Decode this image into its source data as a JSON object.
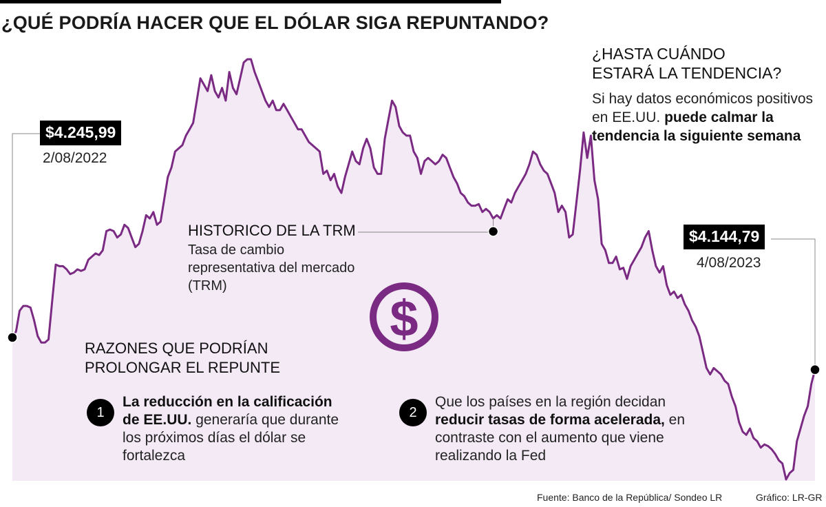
{
  "headline": "¿QUÉ PODRÍA HACER QUE EL DÓLAR SIGA REPUNTANDO?",
  "chart_data": {
    "type": "area",
    "title": "HISTORICO DE LA TRM",
    "subtitle": "Tasa de cambio representativa del mercado (TRM)",
    "x_start": "2/08/2022",
    "x_end": "4/08/2023",
    "values": [
      4245.99,
      4265,
      4330,
      4345,
      4345,
      4340,
      4300,
      4250,
      4230,
      4230,
      4240,
      4360,
      4475,
      4470,
      4470,
      4460,
      4445,
      4450,
      4460,
      4455,
      4460,
      4490,
      4500,
      4510,
      4505,
      4520,
      4580,
      4585,
      4580,
      4560,
      4570,
      4600,
      4590,
      4560,
      4530,
      4540,
      4580,
      4630,
      4620,
      4640,
      4600,
      4610,
      4680,
      4750,
      4780,
      4830,
      4840,
      4850,
      4880,
      4900,
      4920,
      4990,
      5060,
      5040,
      5020,
      5070,
      5020,
      5000,
      5030,
      4990,
      5080,
      5030,
      5010,
      5060,
      5110,
      5120,
      5120,
      5080,
      5050,
      5020,
      4990,
      4970,
      4990,
      4960,
      4960,
      4980,
      4960,
      4940,
      4920,
      4900,
      4900,
      4880,
      4860,
      4850,
      4840,
      4830,
      4760,
      4770,
      4740,
      4760,
      4720,
      4700,
      4750,
      4790,
      4830,
      4800,
      4790,
      4840,
      4870,
      4840,
      4780,
      4760,
      4760,
      4870,
      4930,
      4990,
      4970,
      4910,
      4890,
      4880,
      4880,
      4830,
      4810,
      4760,
      4800,
      4810,
      4800,
      4790,
      4800,
      4820,
      4810,
      4780,
      4750,
      4730,
      4700,
      4690,
      4670,
      4660,
      4660,
      4665,
      4640,
      4650,
      4640,
      4620,
      4630,
      4620,
      4650,
      4680,
      4670,
      4700,
      4720,
      4740,
      4760,
      4790,
      4830,
      4820,
      4790,
      4770,
      4760,
      4730,
      4700,
      4640,
      4660,
      4640,
      4560,
      4570,
      4670,
      4770,
      4890,
      4810,
      4880,
      4740,
      4680,
      4540,
      4520,
      4480,
      4480,
      4500,
      4460,
      4465,
      4430,
      4470,
      4490,
      4510,
      4530,
      4560,
      4580,
      4520,
      4470,
      4450,
      4470,
      4410,
      4380,
      4390,
      4370,
      4380,
      4350,
      4330,
      4300,
      4280,
      4250,
      4200,
      4150,
      4130,
      4150,
      4140,
      4130,
      4110,
      4100,
      4060,
      4030,
      3980,
      3950,
      3940,
      3960,
      3930,
      3920,
      3900,
      3910,
      3905,
      3895,
      3880,
      3860,
      3850,
      3800,
      3820,
      3830,
      3920,
      3960,
      4000,
      4030,
      4100,
      4144.79
    ],
    "annotations": [
      {
        "value": "$4.245,99",
        "date": "2/08/2022"
      },
      {
        "value": "$4.144,79",
        "date": "4/08/2023"
      }
    ],
    "grid": false,
    "fill_color": "#f3eaf6",
    "line_color": "#7a2a82"
  },
  "side": {
    "title_line1": "¿HASTA CUÁNDO",
    "title_line2": "ESTARÁ LA TENDENCIA?",
    "body_plain": "Si hay datos económicos positivos en EE.UU.",
    "body_bold": "puede calmar la tendencia la siguiente semana"
  },
  "trm": {
    "title": "HISTORICO DE LA TRM",
    "subtitle": "Tasa de cambio representativa del mercado (TRM)"
  },
  "reasons": {
    "title": "RAZONES QUE PODRÍAN PROLONGAR EL REPUNTE",
    "items": [
      {
        "num": "1",
        "bold": "La reducción en la calificación de EE.UU.",
        "plain": " generaría que durante los próximos días el dólar se fortalezca",
        "plain_before": ""
      },
      {
        "num": "2",
        "plain_before": "Que los países en la región decidan ",
        "bold": "reducir tasas de forma acelerada,",
        "plain": " en contraste con el aumento que viene realizando la Fed"
      }
    ]
  },
  "icon": {
    "name": "dollar-circle-icon",
    "glyph": "$",
    "color": "#7a2a82"
  },
  "footer": {
    "source": "Fuente: Banco de la República/ Sondeo LR",
    "credit": "Gráfico: LR-GR"
  }
}
